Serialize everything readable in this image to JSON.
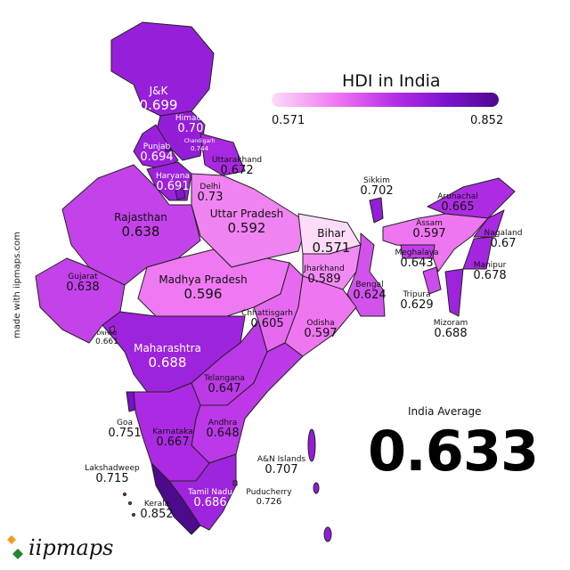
{
  "watermark": "IIPMAPS.COM",
  "title": "HDI in India",
  "legend": {
    "min": "0.571",
    "max": "0.852",
    "colors": [
      "#fcdcf9",
      "#ee72f1",
      "#b22de6",
      "#7a12cc",
      "#4c0a8c"
    ]
  },
  "average": {
    "label": "India Average",
    "value": "0.633"
  },
  "credit": "made with iipmaps.com",
  "logo": "iipmaps",
  "states": {
    "jk": {
      "name": "J&K",
      "value": "0.699"
    },
    "himachal": {
      "name": "Himachal",
      "value": "0.703"
    },
    "chandigarh": {
      "name": "Chandigarh",
      "value": "0.744"
    },
    "punjab": {
      "name": "Punjab",
      "value": "0.694"
    },
    "uttarakhand": {
      "name": "Uttarakhand",
      "value": "0.672"
    },
    "haryana": {
      "name": "Haryana",
      "value": "0.691"
    },
    "delhi": {
      "name": "Delhi",
      "value": "0.73"
    },
    "rajasthan": {
      "name": "Rajasthan",
      "value": "0.638"
    },
    "up": {
      "name": "Uttar Pradesh",
      "value": "0.592"
    },
    "bihar": {
      "name": "Bihar",
      "value": "0.571"
    },
    "sikkim": {
      "name": "Sikkim",
      "value": "0.702"
    },
    "arunachal": {
      "name": "Arunachal",
      "value": "0.665"
    },
    "assam": {
      "name": "Assam",
      "value": "0.597"
    },
    "nagaland": {
      "name": "Nagaland",
      "value": "0.67"
    },
    "meghalaya": {
      "name": "Meghalaya",
      "value": "0.643"
    },
    "manipur": {
      "name": "Manipur",
      "value": "0.678"
    },
    "tripura": {
      "name": "Tripura",
      "value": "0.629"
    },
    "mizoram": {
      "name": "Mizoram",
      "value": "0.688"
    },
    "gujarat": {
      "name": "Gujarat",
      "value": "0.638"
    },
    "mp": {
      "name": "Madhya Pradesh",
      "value": "0.596"
    },
    "jharkhand": {
      "name": "Jharkhand",
      "value": "0.589"
    },
    "bengal": {
      "name": "Bengal",
      "value": "0.624"
    },
    "chhattisgarh": {
      "name": "Chhattisgarh",
      "value": "0.605"
    },
    "odisha": {
      "name": "Odisha",
      "value": "0.597"
    },
    "dnhdd": {
      "name": "DNHDD",
      "value": "0.661"
    },
    "maharashtra": {
      "name": "Maharashtra",
      "value": "0.688"
    },
    "telangana": {
      "name": "Telangana",
      "value": "0.647"
    },
    "goa": {
      "name": "Goa",
      "value": "0.751"
    },
    "karnataka": {
      "name": "Karnataka",
      "value": "0.667"
    },
    "andhra": {
      "name": "Andhra",
      "value": "0.648"
    },
    "an": {
      "name": "A&N Islands",
      "value": "0.707"
    },
    "lakshadweep": {
      "name": "Lakshadweep",
      "value": "0.715"
    },
    "tn": {
      "name": "Tamil Nadu",
      "value": "0.686"
    },
    "puducherry": {
      "name": "Puducherry",
      "value": "0.726"
    },
    "kerala": {
      "name": "Kerala",
      "value": "0.852"
    }
  }
}
